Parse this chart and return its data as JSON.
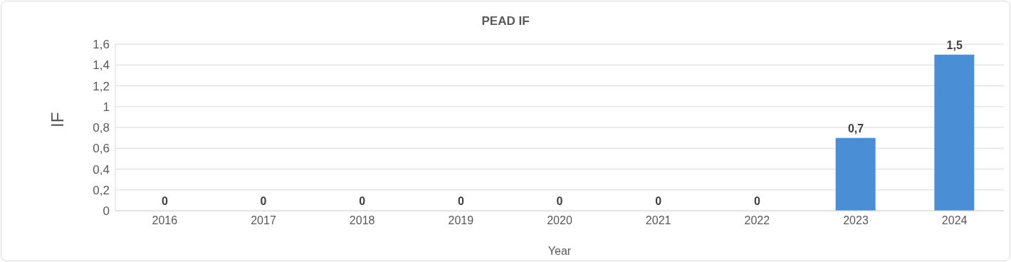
{
  "chart_data": {
    "type": "bar",
    "title": "PEAD IF",
    "xlabel": "Year",
    "ylabel": "IF",
    "categories": [
      "2016",
      "2017",
      "2018",
      "2019",
      "2020",
      "2021",
      "2022",
      "2023",
      "2024"
    ],
    "values": [
      0,
      0,
      0,
      0,
      0,
      0,
      0,
      0.7,
      1.5
    ],
    "value_labels": [
      "0",
      "0",
      "0",
      "0",
      "0",
      "0",
      "0",
      "0,7",
      "1,5"
    ],
    "color": "#4a8fd6",
    "ylim": [
      0,
      1.6
    ],
    "yticks": [
      0,
      {
        "value": 0.2,
        "label": "0,2"
      },
      {
        "value": 0.4,
        "label": "0,4"
      },
      {
        "value": 0.6,
        "label": "0,6"
      },
      {
        "value": 0.8,
        "label": "0,8"
      },
      1,
      {
        "value": 1.2,
        "label": "1,2"
      },
      {
        "value": 1.4,
        "label": "1,4"
      },
      {
        "value": 1.6,
        "label": "1,6"
      }
    ],
    "grid": "y",
    "legend": false
  }
}
